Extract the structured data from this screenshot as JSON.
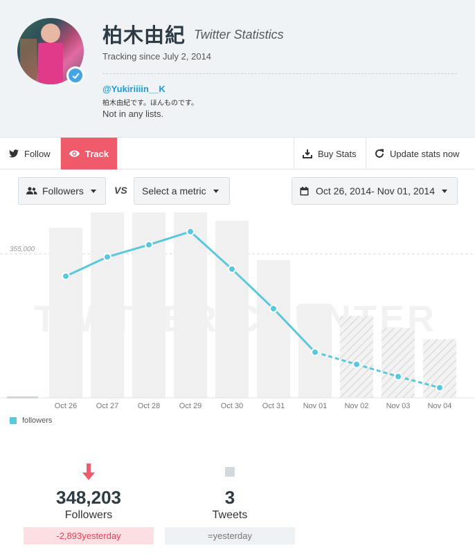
{
  "profile": {
    "name": "柏木由紀",
    "subtitle": "Twitter Statistics",
    "tracking": "Tracking since July 2, 2014",
    "handle": "@Yukiriiiin__K",
    "bio": "柏木由紀です。ほんものです。",
    "lists": "Not in any lists."
  },
  "toolbar": {
    "follow": "Follow",
    "track": "Track",
    "buy_stats": "Buy Stats",
    "update_stats": "Update stats now"
  },
  "controls": {
    "metric1": "Followers",
    "vs": "VS",
    "metric2": "Select a metric",
    "date_range": "Oct 26, 2014- Nov 01, 2014"
  },
  "colors": {
    "accent": "#5ac8dc",
    "track": "#ef5b6b",
    "negative": "#e0415a"
  },
  "chart_data": {
    "type": "line",
    "categories": [
      "Oct 26",
      "Oct 27",
      "Oct 28",
      "Oct 29",
      "Oct 30",
      "Oct 31",
      "Nov 01",
      "Nov 02",
      "Nov 03",
      "Nov 04"
    ],
    "series": [
      {
        "name": "followers",
        "values": [
          353900,
          354850,
          355450,
          356100,
          354250,
          352300,
          350150,
          349550,
          348950,
          348400
        ],
        "projected_from_index": 6
      }
    ],
    "y_tick": 355000,
    "y_tick_label": "355,000",
    "legend": "followers",
    "watermark": "TWITTER COUNTER"
  },
  "stats": [
    {
      "icon": "down-arrow-icon",
      "value": "348,203",
      "label": "Followers",
      "change_value": "-2,893",
      "change_suffix": "yesterday"
    },
    {
      "icon": "square-icon",
      "value": "3",
      "label": "Tweets",
      "change_value": "=",
      "change_suffix": "yesterday"
    }
  ]
}
